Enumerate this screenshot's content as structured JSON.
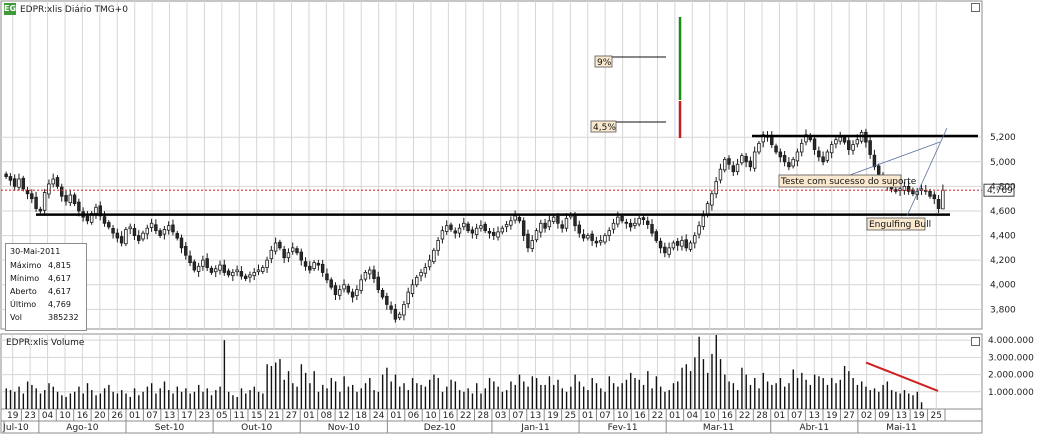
{
  "price_pane_title": "EDPR:xlis Diário TMG+0",
  "volume_pane_title": "EDPR:xlis Volume",
  "logo_text": "EG",
  "last_price_label": "4,769",
  "info_box": {
    "date": "30-Mai-2011",
    "rows": [
      {
        "key": "Máximo",
        "value": "4,815"
      },
      {
        "key": "Mínimo",
        "value": "4,617"
      },
      {
        "key": "Aberto",
        "value": "4,617"
      },
      {
        "key": "Último",
        "value": "4,769"
      },
      {
        "key": "Vol",
        "value": "385232"
      }
    ]
  },
  "colors": {
    "bull": "#ffffff",
    "bear": "#2a2a2a",
    "candle_stroke": "#1a1a1a",
    "support_line": "#000000",
    "last_price_line": "#e03030",
    "green_bar": "#1a8a1a",
    "red_bar": "#c02020",
    "volume_trend": "#d02020"
  },
  "annotations": {
    "pct9": "9%",
    "pct45": "4,5%",
    "support": "Teste com sucesso do suporte",
    "engulfing": "Engulfing Bull"
  },
  "chart_data": {
    "type": "candlestick",
    "price_axis": {
      "ylim": [
        3.64,
        6.3
      ],
      "ticks": [
        "5,200",
        "5,000",
        "4,800",
        "4,600",
        "4,400",
        "4,200",
        "4,000",
        "3,800"
      ],
      "tick_values": [
        5.2,
        5.0,
        4.8,
        4.6,
        4.4,
        4.2,
        4.0,
        3.8
      ]
    },
    "volume_axis": {
      "ylim": [
        0,
        4300000
      ],
      "ticks": [
        "4.000.000",
        "3.000.000",
        "2.000.000",
        "1.000.000"
      ],
      "tick_values": [
        4000000,
        3000000,
        2000000,
        1000000
      ]
    },
    "x_day_labels": [
      "19",
      "23",
      "04",
      "10",
      "16",
      "20",
      "26",
      "01",
      "07",
      "13",
      "17",
      "23",
      "05",
      "11",
      "15",
      "21",
      "27",
      "01",
      "08",
      "12",
      "18",
      "24",
      "01",
      "06",
      "10",
      "16",
      "22",
      "28",
      "03",
      "07",
      "13",
      "19",
      "25",
      "01",
      "07",
      "10",
      "16",
      "22",
      "01",
      "04",
      "10",
      "16",
      "22",
      "28",
      "01",
      "07",
      "13",
      "19",
      "27",
      "02",
      "09",
      "13",
      "19",
      "25"
    ],
    "x_month_labels": [
      "Jul-10",
      "Ago-10",
      "Set-10",
      "Out-10",
      "Nov-10",
      "Dez-10",
      "Jan-11",
      "Fev-11",
      "Mar-11",
      "Abr-11",
      "Mai-11"
    ],
    "support_level": 4.57,
    "resistance_level": 5.21,
    "last_price": 4.769,
    "last_bar": {
      "open": 4.617,
      "high": 4.815,
      "low": 4.617,
      "close": 4.769,
      "volume": 385232
    },
    "closes": [
      4.88,
      4.85,
      4.8,
      4.86,
      4.78,
      4.74,
      4.7,
      4.62,
      4.6,
      4.75,
      4.82,
      4.86,
      4.8,
      4.72,
      4.68,
      4.73,
      4.66,
      4.6,
      4.55,
      4.52,
      4.58,
      4.63,
      4.56,
      4.5,
      4.47,
      4.42,
      4.38,
      4.34,
      4.45,
      4.47,
      4.4,
      4.36,
      4.42,
      4.46,
      4.5,
      4.44,
      4.4,
      4.45,
      4.48,
      4.43,
      4.38,
      4.3,
      4.24,
      4.18,
      4.12,
      4.15,
      4.2,
      4.14,
      4.1,
      4.13,
      4.16,
      4.1,
      4.08,
      4.1,
      4.12,
      4.07,
      4.05,
      4.08,
      4.1,
      4.12,
      4.14,
      4.2,
      4.28,
      4.34,
      4.3,
      4.22,
      4.26,
      4.3,
      4.26,
      4.2,
      4.15,
      4.12,
      4.18,
      4.16,
      4.1,
      4.04,
      3.98,
      3.92,
      3.96,
      4.0,
      3.94,
      3.9,
      3.96,
      4.04,
      4.1,
      4.12,
      4.05,
      3.96,
      3.9,
      3.84,
      3.8,
      3.72,
      3.76,
      3.84,
      3.94,
      4.0,
      4.06,
      4.1,
      4.14,
      4.2,
      4.28,
      4.36,
      4.44,
      4.48,
      4.45,
      4.42,
      4.46,
      4.5,
      4.44,
      4.42,
      4.46,
      4.48,
      4.44,
      4.42,
      4.4,
      4.43,
      4.46,
      4.49,
      4.52,
      4.56,
      4.52,
      4.4,
      4.3,
      4.36,
      4.44,
      4.5,
      4.46,
      4.52,
      4.55,
      4.5,
      4.46,
      4.54,
      4.57,
      4.48,
      4.42,
      4.38,
      4.4,
      4.36,
      4.34,
      4.36,
      4.4,
      4.44,
      4.5,
      4.55,
      4.52,
      4.5,
      4.47,
      4.5,
      4.54,
      4.53,
      4.49,
      4.42,
      4.36,
      4.3,
      4.26,
      4.3,
      4.34,
      4.32,
      4.36,
      4.3,
      4.34,
      4.4,
      4.48,
      4.56,
      4.66,
      4.74,
      4.84,
      4.94,
      5.02,
      4.98,
      4.92,
      4.98,
      5.05,
      5.0,
      4.96,
      5.08,
      5.15,
      5.22,
      5.2,
      5.14,
      5.08,
      5.04,
      5.0,
      4.96,
      5.02,
      5.08,
      5.15,
      5.22,
      5.18,
      5.1,
      5.04,
      5.0,
      5.08,
      5.14,
      5.18,
      5.2,
      5.16,
      5.1,
      5.14,
      5.18,
      5.24,
      5.16,
      5.06,
      4.96,
      4.9,
      4.84,
      4.8,
      4.78,
      4.76,
      4.78,
      4.8,
      4.76,
      4.74,
      4.76,
      4.78,
      4.76,
      4.72,
      4.7,
      4.62,
      4.769
    ],
    "volumes": [
      1.2,
      1.1,
      1.0,
      1.3,
      0.9,
      1.6,
      1.4,
      1.2,
      0.9,
      1.1,
      1.5,
      1.3,
      1.0,
      0.8,
      0.7,
      0.9,
      1.0,
      1.3,
      0.9,
      1.5,
      1.1,
      0.8,
      0.9,
      1.2,
      1.4,
      1.0,
      0.9,
      1.1,
      0.9,
      0.7,
      1.2,
      0.8,
      1.0,
      1.3,
      1.5,
      0.9,
      1.2,
      1.6,
      1.1,
      0.9,
      1.3,
      1.0,
      1.2,
      0.9,
      1.0,
      1.4,
      1.0,
      1.2,
      0.8,
      1.1,
      1.3,
      4.0,
      1.0,
      0.8,
      0.7,
      1.2,
      0.9,
      1.1,
      1.3,
      1.0,
      0.9,
      2.6,
      2.5,
      2.7,
      2.9,
      1.7,
      2.2,
      1.5,
      1.3,
      2.6,
      2.1,
      1.5,
      2.2,
      1.0,
      1.4,
      1.2,
      1.8,
      1.6,
      1.0,
      1.9,
      1.3,
      1.4,
      1.0,
      1.2,
      1.5,
      1.8,
      1.1,
      1.0,
      2.0,
      2.4,
      1.6,
      2.0,
      1.3,
      1.5,
      1.1,
      1.8,
      1.5,
      1.4,
      1.3,
      1.7,
      2.0,
      1.8,
      1.0,
      1.3,
      1.7,
      1.6,
      1.1,
      1.0,
      1.2,
      0.9,
      1.5,
      0.9,
      1.2,
      1.8,
      1.6,
      1.3,
      1.0,
      1.1,
      1.6,
      1.4,
      2.0,
      1.6,
      1.3,
      1.9,
      1.8,
      1.4,
      1.4,
      1.9,
      1.4,
      1.7,
      1.2,
      1.0,
      1.3,
      2.0,
      1.6,
      1.3,
      1.1,
      1.8,
      1.5,
      1.2,
      1.0,
      1.9,
      1.5,
      1.3,
      1.5,
      1.7,
      2.1,
      1.8,
      1.7,
      1.4,
      2.2,
      1.2,
      1.9,
      1.3,
      1.0,
      1.1,
      1.5,
      1.6,
      2.4,
      2.6,
      2.2,
      3.0,
      4.2,
      2.9,
      2.1,
      3.2,
      4.3,
      2.9,
      2.0,
      1.6,
      1.5,
      1.1,
      2.4,
      2.0,
      1.4,
      1.8,
      1.2,
      2.1,
      1.6,
      1.4,
      1.5,
      1.8,
      1.3,
      1.5,
      2.3,
      1.8,
      2.1,
      1.7,
      1.4,
      2.0,
      1.9,
      1.8,
      1.4,
      1.8,
      1.5,
      1.7,
      2.5,
      2.2,
      1.8,
      1.4,
      1.6,
      1.3,
      1.1,
      1.2,
      1.0,
      1.4,
      1.6,
      1.1,
      1.0,
      0.9,
      1.1,
      0.9,
      0.8,
      1.0,
      0.39
    ]
  }
}
